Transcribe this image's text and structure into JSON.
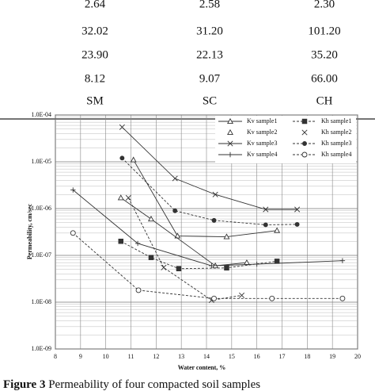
{
  "table": {
    "rows": [
      [
        "2.64",
        "2.58",
        "2.30"
      ],
      [
        "32.02",
        "31.20",
        "101.20"
      ],
      [
        "23.90",
        "22.13",
        "35.20"
      ],
      [
        "8.12",
        "9.07",
        "66.00"
      ],
      [
        "SM",
        "SC",
        "CH"
      ]
    ]
  },
  "chart_data": {
    "type": "scatter",
    "x_label": "Water content, %",
    "y_label": "Permeability, cm/sec",
    "xlim": [
      8,
      20
    ],
    "xticks": [
      8,
      9,
      10,
      11,
      12,
      13,
      14,
      15,
      16,
      17,
      18,
      19,
      20
    ],
    "ylim": [
      1e-09,
      0.0001
    ],
    "log_y": true,
    "grid": true,
    "legend": "upper right",
    "yticks": [
      {
        "value": 1e-09,
        "label": "1.0E-09"
      },
      {
        "value": 1e-08,
        "label": "1.0E-08"
      },
      {
        "value": 1e-07,
        "label": "1.0E-07"
      },
      {
        "value": 1e-06,
        "label": "1.0E-06"
      },
      {
        "value": 1e-05,
        "label": "1.0E-05"
      },
      {
        "value": 0.0001,
        "label": "1.0E-04"
      }
    ],
    "series": [
      {
        "name": "Kv sample1",
        "color": "#333333",
        "marker": "triangle",
        "line": "solid",
        "x": [
          11.1,
          12.85,
          14.8,
          16.8
        ],
        "values": [
          1.1e-05,
          2.6e-07,
          2.5e-07,
          3.4e-07
        ]
      },
      {
        "name": "Kh sample1",
        "color": "#333333",
        "marker": "square",
        "line": "dashed",
        "x": [
          10.6,
          11.8,
          12.9,
          14.8,
          16.8
        ],
        "values": [
          2e-07,
          9e-08,
          5.2e-08,
          5.4e-08,
          7.5e-08
        ]
      },
      {
        "name": "Kv sample2",
        "color": "#333333",
        "marker": "triangle",
        "line": "solid",
        "legend_line": false,
        "x": [
          10.6,
          11.8,
          14.35,
          15.6
        ],
        "values": [
          1.7e-06,
          6e-07,
          6e-08,
          7e-08
        ]
      },
      {
        "name": "Kh sample2",
        "color": "#333333",
        "marker": "x",
        "line": "dashed",
        "legend_line": false,
        "x": [
          10.9,
          12.3,
          14.2,
          15.4
        ],
        "values": [
          1.7e-06,
          5.5e-08,
          1.1e-08,
          1.4e-08
        ]
      },
      {
        "name": "Kv sample3",
        "color": "#333333",
        "marker": "x",
        "line": "solid",
        "x": [
          10.65,
          12.75,
          14.35,
          16.35,
          17.6
        ],
        "values": [
          5.5e-05,
          4.4e-06,
          2e-06,
          9.6e-07,
          9.6e-07
        ]
      },
      {
        "name": "Kh sample3",
        "color": "#333333",
        "marker": "dot",
        "line": "dashed",
        "x": [
          10.65,
          12.75,
          14.3,
          16.35,
          17.6
        ],
        "values": [
          1.2e-05,
          9e-07,
          5.6e-07,
          4.5e-07,
          4.6e-07
        ]
      },
      {
        "name": "Kv sample4",
        "color": "#333333",
        "marker": "plus",
        "line": "solid",
        "x": [
          8.7,
          11.27,
          14.2,
          16.0,
          19.4
        ],
        "values": [
          2.5e-06,
          1.8e-07,
          6e-08,
          6.5e-08,
          7.7e-08
        ]
      },
      {
        "name": "Kh sample4",
        "color": "#333333",
        "marker": "circle",
        "line": "dashed",
        "x": [
          8.7,
          11.3,
          14.3,
          16.6,
          19.4
        ],
        "values": [
          3e-07,
          1.8e-08,
          1.2e-08,
          1.2e-08,
          1.2e-08
        ]
      }
    ]
  },
  "caption": {
    "label": "Figure 3",
    "text": "Permeability of four compacted soil samples"
  }
}
